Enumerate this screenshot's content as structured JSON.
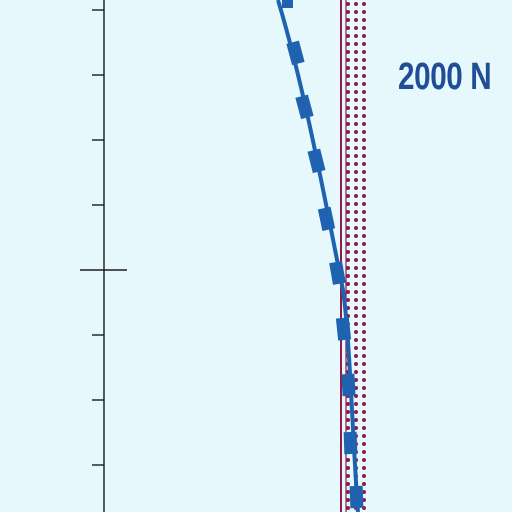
{
  "map": {
    "label": "2000 N",
    "colors": {
      "background": "#e6f8fc",
      "scale_line": "#1a1a1a",
      "route": "#1f63b0",
      "boundary": "#8c1c4a",
      "label": "#1f4e96"
    }
  }
}
